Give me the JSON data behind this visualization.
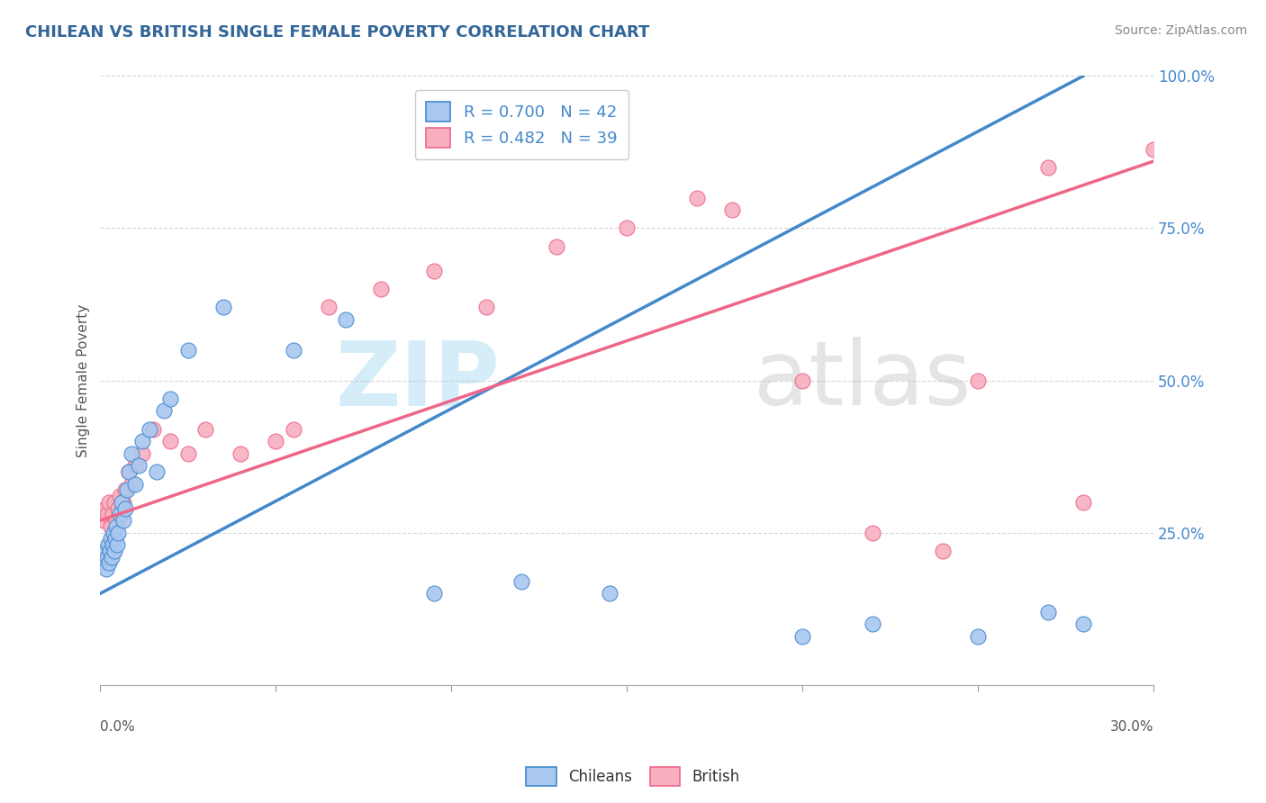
{
  "title": "CHILEAN VS BRITISH SINGLE FEMALE POVERTY CORRELATION CHART",
  "source": "Source: ZipAtlas.com",
  "ylabel": "Single Female Poverty",
  "xlim": [
    0.0,
    30.0
  ],
  "ylim": [
    0.0,
    100.0
  ],
  "ytick_values": [
    25.0,
    50.0,
    75.0,
    100.0
  ],
  "chilean_color": "#a8c8f0",
  "british_color": "#f8b0c0",
  "chilean_line_color": "#4488cc",
  "british_line_color": "#ee6688",
  "chilean_R": 0.7,
  "chilean_N": 42,
  "british_R": 0.482,
  "british_N": 39,
  "chi_line_x0": 0.0,
  "chi_line_y0": 15.0,
  "chi_line_x1": 28.0,
  "chi_line_y1": 100.0,
  "brit_line_x0": 0.0,
  "brit_line_y0": 27.0,
  "brit_line_x1": 30.0,
  "brit_line_y1": 86.0,
  "chi_x": [
    0.1,
    0.15,
    0.18,
    0.2,
    0.22,
    0.25,
    0.28,
    0.3,
    0.32,
    0.35,
    0.38,
    0.4,
    0.42,
    0.45,
    0.48,
    0.5,
    0.55,
    0.6,
    0.65,
    0.7,
    0.75,
    0.8,
    0.9,
    1.0,
    1.1,
    1.2,
    1.4,
    1.6,
    1.8,
    2.0,
    2.5,
    3.5,
    5.5,
    7.0,
    9.5,
    12.0,
    14.5,
    20.0,
    22.0,
    25.0,
    27.0,
    28.0
  ],
  "chi_y": [
    20.0,
    22.0,
    19.0,
    21.0,
    23.0,
    20.0,
    22.0,
    24.0,
    21.0,
    23.0,
    25.0,
    22.0,
    24.0,
    26.0,
    23.0,
    25.0,
    28.0,
    30.0,
    27.0,
    29.0,
    32.0,
    35.0,
    38.0,
    33.0,
    36.0,
    40.0,
    42.0,
    35.0,
    45.0,
    47.0,
    55.0,
    62.0,
    55.0,
    60.0,
    15.0,
    17.0,
    15.0,
    8.0,
    10.0,
    8.0,
    12.0,
    10.0
  ],
  "brit_x": [
    0.1,
    0.15,
    0.2,
    0.25,
    0.3,
    0.35,
    0.4,
    0.45,
    0.5,
    0.55,
    0.6,
    0.65,
    0.7,
    0.8,
    0.9,
    1.0,
    1.2,
    1.5,
    2.0,
    2.5,
    3.0,
    4.0,
    5.0,
    5.5,
    6.5,
    8.0,
    9.5,
    11.0,
    13.0,
    15.0,
    17.0,
    18.0,
    20.0,
    22.0,
    24.0,
    25.0,
    27.0,
    28.0,
    30.0
  ],
  "brit_y": [
    27.0,
    29.0,
    28.0,
    30.0,
    26.0,
    28.0,
    30.0,
    27.0,
    29.0,
    31.0,
    28.0,
    30.0,
    32.0,
    35.0,
    33.0,
    36.0,
    38.0,
    42.0,
    40.0,
    38.0,
    42.0,
    38.0,
    40.0,
    42.0,
    62.0,
    65.0,
    68.0,
    62.0,
    72.0,
    75.0,
    80.0,
    78.0,
    50.0,
    25.0,
    22.0,
    50.0,
    85.0,
    30.0,
    88.0
  ]
}
